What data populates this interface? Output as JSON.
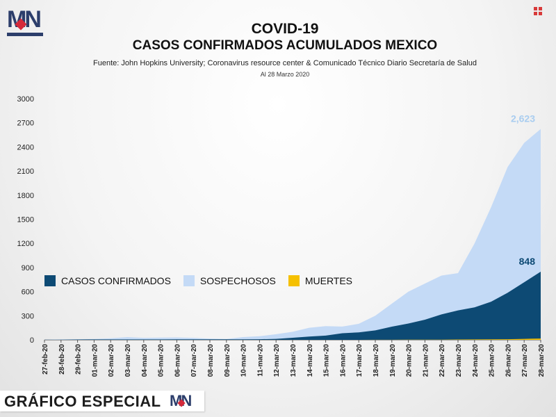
{
  "brand": {
    "logo_text": "MN"
  },
  "header": {
    "title": "COVID-19",
    "subtitle": "CASOS CONFIRMADOS ACUMULADOS MEXICO",
    "source": "Fuente: John Hopkins University; Coronavirus resource center & Comunicado Técnico Diario Secretaría de Salud",
    "date": "Al 28 Marzo 2020"
  },
  "legend": {
    "items": [
      {
        "label": "CASOS CONFIRMADOS",
        "color": "#0d4a74"
      },
      {
        "label": "SOSPECHOSOS",
        "color": "#c4daf6"
      },
      {
        "label": "MUERTES",
        "color": "#f5c000"
      }
    ]
  },
  "footer": {
    "label": "GRÁFICO ESPECIAL",
    "logo_text": "MN"
  },
  "chart_data": {
    "type": "area",
    "x": [
      "27-feb-20",
      "28-feb-20",
      "29-feb-20",
      "01-mar-20",
      "02-mar-20",
      "03-mar-20",
      "04-mar-20",
      "05-mar-20",
      "06-mar-20",
      "07-mar-20",
      "08-mar-20",
      "09-mar-20",
      "10-mar-20",
      "11-mar-20",
      "12-mar-20",
      "13-mar-20",
      "14-mar-20",
      "15-mar-20",
      "16-mar-20",
      "17-mar-20",
      "18-mar-20",
      "19-mar-20",
      "20-mar-20",
      "21-mar-20",
      "22-mar-20",
      "23-mar-20",
      "24-mar-20",
      "25-mar-20",
      "26-mar-20",
      "27-mar-20",
      "28-mar-20"
    ],
    "ylim": [
      0,
      3000
    ],
    "yticks": [
      0,
      300,
      600,
      900,
      1200,
      1500,
      1800,
      2100,
      2400,
      2700,
      3000
    ],
    "grid": false,
    "legend_position": "middle-left",
    "series": [
      {
        "name": "SOSPECHOSOS",
        "color": "#c4daf6",
        "values": [
          2,
          5,
          8,
          10,
          20,
          35,
          25,
          28,
          30,
          25,
          15,
          10,
          35,
          45,
          70,
          100,
          150,
          170,
          165,
          200,
          300,
          450,
          600,
          700,
          800,
          830,
          1200,
          1650,
          2150,
          2450,
          2623
        ]
      },
      {
        "name": "CASOS CONFIRMADOS",
        "color": "#0d4a74",
        "values": [
          1,
          2,
          4,
          5,
          5,
          5,
          5,
          5,
          6,
          6,
          7,
          7,
          7,
          8,
          12,
          26,
          41,
          53,
          82,
          93,
          118,
          164,
          203,
          251,
          316,
          367,
          405,
          475,
          585,
          717,
          848
        ]
      },
      {
        "name": "MUERTES",
        "color": "#f5c000",
        "values": [
          0,
          0,
          0,
          0,
          0,
          0,
          0,
          0,
          0,
          0,
          0,
          0,
          0,
          0,
          0,
          0,
          0,
          0,
          0,
          0,
          1,
          1,
          2,
          2,
          2,
          4,
          5,
          6,
          8,
          12,
          16
        ]
      }
    ],
    "annotations": [
      {
        "series": "SOSPECHOSOS",
        "text": "2,623",
        "color": "#a9cdf0"
      },
      {
        "series": "CASOS CONFIRMADOS",
        "text": "848",
        "color": "#0d4a74"
      }
    ]
  }
}
